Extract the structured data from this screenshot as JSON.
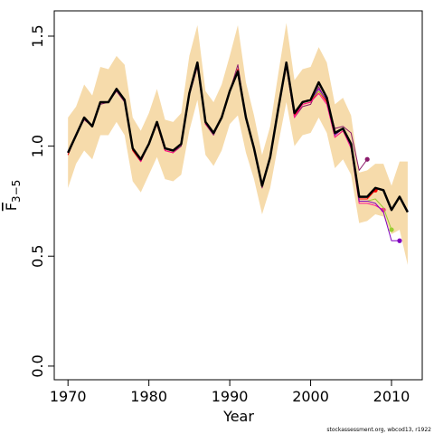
{
  "chart_data": {
    "type": "line",
    "xlabel": "Year",
    "ylabel": {
      "main": "F",
      "sub": "3−5"
    },
    "footnote": "stockassessment.org, wbcod13, r1922",
    "x": [
      1970,
      1971,
      1972,
      1973,
      1974,
      1975,
      1976,
      1977,
      1978,
      1979,
      1980,
      1981,
      1982,
      1983,
      1984,
      1985,
      1986,
      1987,
      1988,
      1989,
      1990,
      1991,
      1992,
      1993,
      1994,
      1995,
      1996,
      1997,
      1998,
      1999,
      2000,
      2001,
      2002,
      2003,
      2004,
      2005,
      2006,
      2007,
      2008,
      2009,
      2010,
      2011,
      2012
    ],
    "xlim": [
      1968.3,
      2013.8
    ],
    "ylim": [
      -0.062,
      1.615
    ],
    "xticks": [
      1970,
      1980,
      1990,
      2000,
      2010
    ],
    "yticks": [
      {
        "value": 0,
        "label": "0.0"
      },
      {
        "value": 0.5,
        "label": "0.5"
      },
      {
        "value": 1,
        "label": "1.0"
      },
      {
        "value": 1.5,
        "label": "1.5"
      }
    ],
    "band": {
      "color": "#f6dbab",
      "upper": [
        1.13,
        1.18,
        1.28,
        1.23,
        1.36,
        1.35,
        1.41,
        1.37,
        1.13,
        1.07,
        1.15,
        1.26,
        1.12,
        1.11,
        1.15,
        1.41,
        1.55,
        1.25,
        1.2,
        1.28,
        1.41,
        1.55,
        1.29,
        1.14,
        0.96,
        1.09,
        1.33,
        1.56,
        1.3,
        1.35,
        1.36,
        1.45,
        1.38,
        1.19,
        1.22,
        1.14,
        0.88,
        0.89,
        0.92,
        0.92,
        0.82,
        0.93,
        0.93
      ],
      "lower": [
        0.81,
        0.92,
        0.98,
        0.94,
        1.05,
        1.05,
        1.11,
        1.05,
        0.84,
        0.79,
        0.87,
        0.95,
        0.85,
        0.84,
        0.87,
        1.07,
        1.21,
        0.96,
        0.91,
        0.98,
        1.1,
        1.14,
        0.97,
        0.85,
        0.69,
        0.81,
        1.01,
        1.2,
        1.0,
        1.05,
        1.06,
        1.13,
        1.06,
        0.9,
        0.94,
        0.87,
        0.65,
        0.66,
        0.69,
        0.68,
        0.6,
        0.62,
        0.46
      ]
    },
    "series": [
      {
        "color": "#8b1a6b",
        "end_marker": true,
        "values": [
          0.96,
          1.05,
          1.12,
          1.09,
          1.19,
          1.2,
          1.25,
          1.2,
          0.98,
          0.93,
          1.01,
          1.1,
          0.98,
          0.97,
          1.0,
          1.23,
          1.36,
          1.1,
          1.05,
          1.13,
          1.25,
          1.37,
          1.13,
          0.99,
          0.81,
          0.95,
          1.17,
          1.36,
          1.13,
          1.18,
          1.19,
          1.27,
          1.2,
          1.08,
          1.09,
          1.06,
          0.89,
          0.94,
          null,
          null,
          null,
          null,
          null
        ]
      },
      {
        "color": "#ff0000",
        "end_marker": true,
        "values": [
          0.96,
          1.05,
          1.13,
          1.09,
          1.2,
          1.2,
          1.26,
          1.21,
          0.98,
          0.93,
          1.01,
          1.1,
          0.98,
          0.97,
          1.01,
          1.24,
          1.37,
          1.1,
          1.06,
          1.13,
          1.25,
          1.35,
          1.13,
          0.99,
          0.82,
          0.95,
          1.17,
          1.37,
          1.14,
          1.19,
          1.2,
          1.25,
          1.2,
          1.04,
          1.07,
          1.0,
          0.76,
          0.76,
          0.8,
          null,
          null,
          null,
          null
        ]
      },
      {
        "color": "#ff1493",
        "end_marker": true,
        "values": [
          0.97,
          1.05,
          1.13,
          1.09,
          1.2,
          1.2,
          1.26,
          1.21,
          0.99,
          0.93,
          1.01,
          1.11,
          0.98,
          0.97,
          1.01,
          1.24,
          1.37,
          1.1,
          1.06,
          1.13,
          1.25,
          1.34,
          1.13,
          0.99,
          0.82,
          0.95,
          1.17,
          1.37,
          1.13,
          1.19,
          1.2,
          1.24,
          1.19,
          1.04,
          1.07,
          0.99,
          0.74,
          0.74,
          0.73,
          0.71,
          null,
          null,
          null
        ]
      },
      {
        "color": "#9acd32",
        "end_marker": true,
        "values": [
          0.97,
          1.05,
          1.13,
          1.09,
          1.2,
          1.2,
          1.26,
          1.21,
          0.99,
          0.94,
          1.01,
          1.11,
          0.99,
          0.98,
          1.01,
          1.24,
          1.38,
          1.11,
          1.06,
          1.13,
          1.25,
          1.34,
          1.13,
          0.99,
          0.82,
          0.95,
          1.17,
          1.38,
          1.15,
          1.2,
          1.21,
          1.25,
          1.21,
          1.05,
          1.08,
          1.0,
          0.75,
          0.75,
          0.76,
          0.72,
          0.62,
          null,
          null
        ]
      },
      {
        "color": "#8000c0",
        "end_marker": true,
        "values": [
          0.97,
          1.05,
          1.13,
          1.09,
          1.2,
          1.2,
          1.26,
          1.21,
          0.99,
          0.94,
          1.01,
          1.11,
          0.99,
          0.98,
          1.01,
          1.24,
          1.38,
          1.11,
          1.06,
          1.13,
          1.25,
          1.34,
          1.13,
          0.99,
          0.82,
          0.95,
          1.17,
          1.38,
          1.15,
          1.2,
          1.21,
          1.26,
          1.21,
          1.05,
          1.08,
          1.0,
          0.75,
          0.75,
          0.74,
          0.7,
          0.57,
          0.57,
          null
        ]
      },
      {
        "color": "#000000",
        "width": 2.5,
        "values": [
          0.97,
          1.05,
          1.13,
          1.09,
          1.2,
          1.2,
          1.26,
          1.21,
          0.99,
          0.94,
          1.01,
          1.11,
          0.99,
          0.98,
          1.01,
          1.24,
          1.38,
          1.11,
          1.06,
          1.13,
          1.25,
          1.34,
          1.13,
          0.99,
          0.82,
          0.95,
          1.17,
          1.38,
          1.15,
          1.2,
          1.21,
          1.29,
          1.22,
          1.06,
          1.08,
          1.01,
          0.77,
          0.77,
          0.81,
          0.8,
          0.71,
          0.77,
          0.7
        ]
      }
    ]
  }
}
